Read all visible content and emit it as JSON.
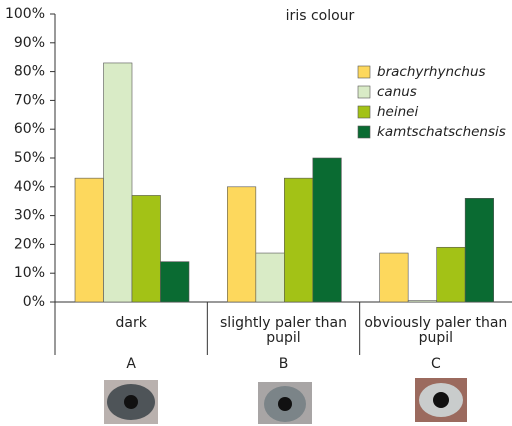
{
  "chart_data": {
    "type": "bar",
    "title": "iris colour",
    "categories": [
      "dark",
      "slightly paler than pupil",
      "obviously paler than pupil"
    ],
    "group_labels": [
      "A",
      "B",
      "C"
    ],
    "series": [
      {
        "name": "brachyrhynchus",
        "color": "#fdd85d",
        "values": [
          43,
          40,
          17
        ]
      },
      {
        "name": "canus",
        "color": "#d9ebc6",
        "values": [
          83,
          17,
          0.5
        ]
      },
      {
        "name": "heinei",
        "color": "#a3c216",
        "values": [
          37,
          43,
          19
        ]
      },
      {
        "name": "kamtschatschensis",
        "color": "#0a6b32",
        "values": [
          14,
          50,
          36
        ]
      }
    ],
    "ylim": [
      0,
      100
    ],
    "yticks": [
      {
        "value": 0,
        "label": "0%"
      },
      {
        "value": 10,
        "label": "10%"
      },
      {
        "value": 20,
        "label": "20%"
      },
      {
        "value": 30,
        "label": "30%"
      },
      {
        "value": 40,
        "label": "40%"
      },
      {
        "value": 50,
        "label": "50%"
      },
      {
        "value": 60,
        "label": "60%"
      },
      {
        "value": 70,
        "label": "70%"
      },
      {
        "value": 80,
        "label": "80%"
      },
      {
        "value": 90,
        "label": "90%"
      },
      {
        "value": 100,
        "label": "100%"
      }
    ]
  }
}
